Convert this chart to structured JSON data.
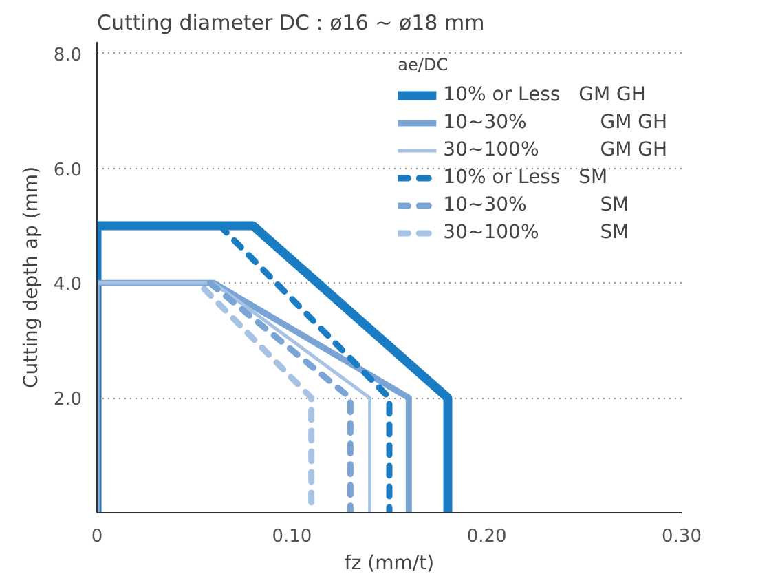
{
  "chart_data": {
    "type": "line",
    "title": "Cutting diameter DC :  ø16 ~ ø18 mm",
    "legend_title": "ae/DC",
    "xlabel": "fz (mm/t)",
    "ylabel": "Cutting depth ap (mm)",
    "xlim": [
      0,
      0.3
    ],
    "ylim": [
      0,
      8.2
    ],
    "xticks": [
      0,
      {
        "value": 0.1,
        "label": "0.10"
      },
      {
        "value": 0.2,
        "label": "0.20"
      },
      {
        "value": 0.3,
        "label": "0.30"
      }
    ],
    "yticks": [
      {
        "value": 2,
        "label": "2.0"
      },
      {
        "value": 4,
        "label": "4.0"
      },
      {
        "value": 6,
        "label": "6.0"
      },
      {
        "value": 8,
        "label": "8.0"
      }
    ],
    "grid": "y",
    "legend": "top right",
    "marker": "none",
    "series": [
      {
        "name": "10% or Less   GM GH",
        "color": "#1a7dc4",
        "line_style": "solid",
        "x": [
          0,
          0,
          0.08,
          0.18,
          0.18
        ],
        "values": [
          0,
          5,
          5,
          2,
          0
        ]
      },
      {
        "name": "10~30%            GM GH",
        "color": "#7aa3d6",
        "line_style": "solid",
        "x": [
          0,
          0,
          0.06,
          0.16,
          0.16
        ],
        "values": [
          0,
          4,
          4,
          2,
          0
        ]
      },
      {
        "name": "30~100%          GM GH",
        "color": "#a8c2e4",
        "line_style": "solid",
        "x": [
          0,
          0,
          0.06,
          0.14,
          0.14
        ],
        "values": [
          0,
          4,
          4,
          2,
          0
        ]
      },
      {
        "name": "10% or Less   SM",
        "color": "#1a7dc4",
        "line_style": "dashed",
        "x": [
          0.063,
          0.15,
          0.15
        ],
        "values": [
          5,
          2,
          0
        ]
      },
      {
        "name": "10~30%            SM",
        "color": "#7aa3d6",
        "line_style": "dashed",
        "x": [
          0.058,
          0.13,
          0.13
        ],
        "values": [
          4,
          2,
          0
        ]
      },
      {
        "name": "30~100%          SM",
        "color": "#a8c2e4",
        "line_style": "dashed",
        "x": [
          0.055,
          0.11,
          0.11
        ],
        "values": [
          3.9,
          2,
          0
        ]
      }
    ]
  }
}
